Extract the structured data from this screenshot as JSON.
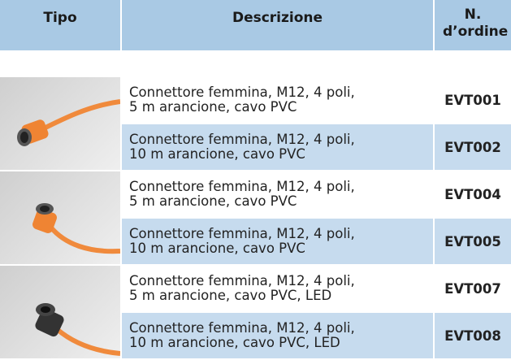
{
  "header": {
    "tipo": "Tipo",
    "descrizione": "Descrizione",
    "ordine": "N. d’ordine"
  },
  "rows": [
    {
      "description": [
        "Connettore femmina, M12, 4 poli,",
        "5 m arancione, cavo PVC"
      ],
      "code": "EVT001"
    },
    {
      "description": [
        "Connettore femmina, M12, 4 poli,",
        "10 m arancione, cavo PVC"
      ],
      "code": "EVT002"
    },
    {
      "description": [
        "Connettore femmina, M12, 4 poli,",
        "5 m arancione, cavo PVC"
      ],
      "code": "EVT004"
    },
    {
      "description": [
        "Connettore femmina, M12, 4 poli,",
        "10 m arancione, cavo PVC"
      ],
      "code": "EVT005"
    },
    {
      "description": [
        "Connettore femmina, M12, 4 poli,",
        "5 m arancione, cavo PVC, LED"
      ],
      "code": "EVT007"
    },
    {
      "description": [
        "Connettore femmina, M12, 4 poli,",
        "10 m arancione, cavo PVC, LED"
      ],
      "code": "EVT008"
    }
  ]
}
